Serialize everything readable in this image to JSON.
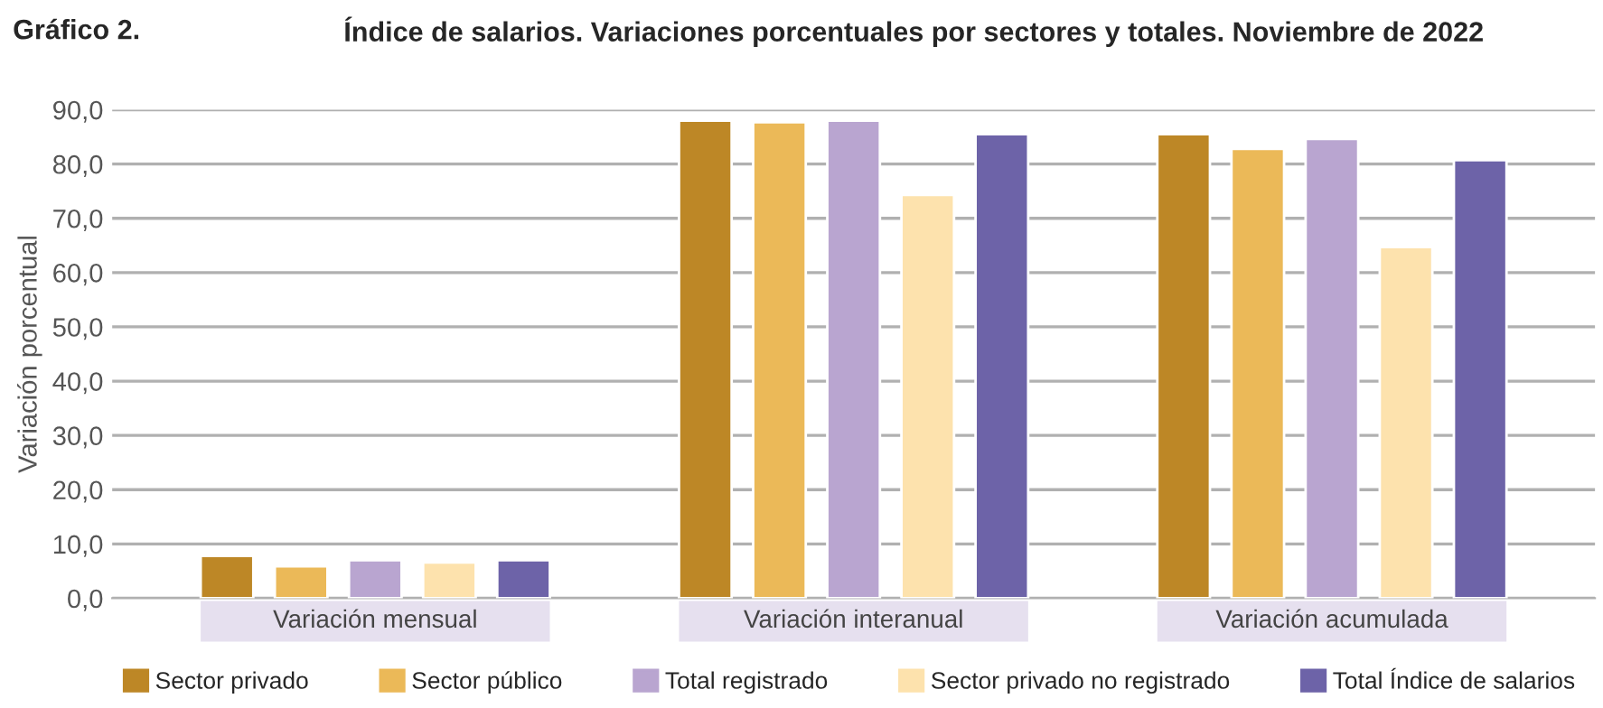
{
  "chart_data": {
    "type": "bar",
    "title": "Índice de salarios. Variaciones porcentuales por sectores y totales. Noviembre de 2022",
    "subtitle": "Gráfico 2.",
    "ylabel": "Variación porcentual",
    "categories": [
      "Variación mensual",
      "Variación interanual",
      "Variación acumulada"
    ],
    "series": [
      {
        "name": "Sector privado",
        "color": "#bd8726",
        "values": [
          7.8,
          88.0,
          85.5
        ]
      },
      {
        "name": "Sector público",
        "color": "#ebb958",
        "values": [
          5.9,
          87.7,
          82.8
        ]
      },
      {
        "name": "Total registrado",
        "color": "#b9a5d0",
        "values": [
          7.0,
          88.0,
          84.6
        ]
      },
      {
        "name": "Sector privado no registrado",
        "color": "#fde2ad",
        "values": [
          6.6,
          74.3,
          64.7
        ]
      },
      {
        "name": "Total Índice de salarios",
        "color": "#6d63a8",
        "values": [
          7.0,
          85.5,
          80.7
        ]
      }
    ],
    "ylim": [
      0,
      90
    ],
    "yticks": [
      {
        "value": 0,
        "label": "0,0"
      },
      {
        "value": 10,
        "label": "10,0"
      },
      {
        "value": 20,
        "label": "20,0"
      },
      {
        "value": 30,
        "label": "30,0"
      },
      {
        "value": 40,
        "label": "40,0"
      },
      {
        "value": 50,
        "label": "50,0"
      },
      {
        "value": 60,
        "label": "60,0"
      },
      {
        "value": 70,
        "label": "70,0"
      },
      {
        "value": 80,
        "label": "80,0"
      },
      {
        "value": 90,
        "label": "90,0"
      }
    ],
    "grid": "y",
    "legend": "bottom"
  }
}
